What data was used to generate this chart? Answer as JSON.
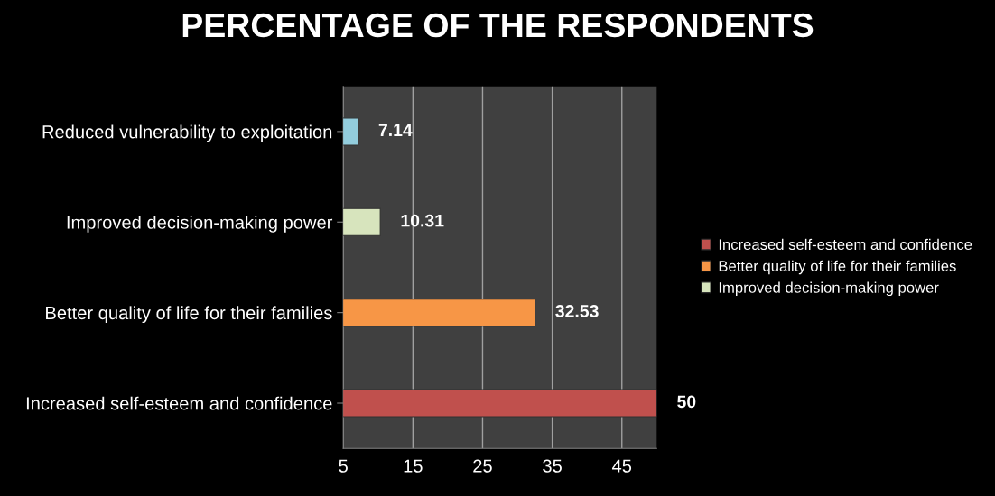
{
  "chart_data": {
    "type": "bar",
    "orientation": "horizontal",
    "title": "PERCENTAGE OF THE RESPONDENTS",
    "categories": [
      "Reduced vulnerability to exploitation",
      "Improved decision-making power",
      "Better quality of life for their families",
      "Increased self-esteem and confidence"
    ],
    "series": [
      {
        "name": "Increased self-esteem and confidence",
        "color": "#c0504d",
        "values": [
          null,
          null,
          null,
          50
        ]
      },
      {
        "name": "Better quality of life for their families",
        "color": "#f79646",
        "values": [
          null,
          null,
          32.53,
          null
        ]
      },
      {
        "name": "Improved decision-making power",
        "color": "#d7e4bd",
        "values": [
          null,
          10.31,
          null,
          null
        ]
      },
      {
        "color": "#93cddd",
        "values": [
          7.14,
          null,
          null,
          null
        ]
      }
    ],
    "xlim": [
      5,
      50
    ],
    "xticks": [
      5,
      15,
      25,
      35,
      45
    ],
    "grid": "x",
    "legend": "right",
    "data_labels": true
  }
}
